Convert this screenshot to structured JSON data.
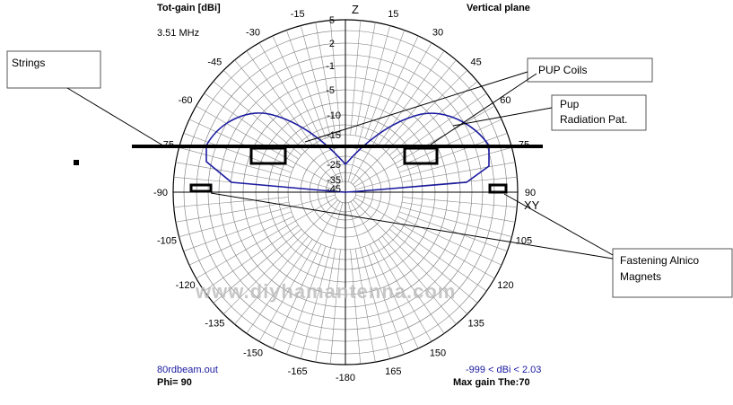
{
  "header": {
    "title": "Tot-gain [dBi]",
    "plane": "Vertical plane",
    "frequency": "3.51 MHz"
  },
  "axes": {
    "z": "Z",
    "xy": "XY"
  },
  "angle_labels": [
    -15,
    15,
    -30,
    30,
    -45,
    45,
    -60,
    60,
    -75,
    75,
    -90,
    90,
    -105,
    105,
    -120,
    120,
    -135,
    135,
    -150,
    150,
    -165,
    165,
    -180
  ],
  "radial_labels": [
    5,
    2,
    -1,
    -5,
    -10,
    -15,
    -25,
    -35,
    -45
  ],
  "footer": {
    "file": "80rdbeam.out",
    "phi": "Phi= 90",
    "range": "-999 < dBi < 2.03",
    "max_gain": "Max gain The:70"
  },
  "annotations": {
    "strings": "Strings",
    "pup_coils": "PUP Coils",
    "pup_radiation": [
      "Pup",
      "Radiation Pat."
    ],
    "magnets": [
      "Fastening Alnico",
      "Magnets"
    ]
  },
  "watermark": "www.diyhamantenna.com"
}
